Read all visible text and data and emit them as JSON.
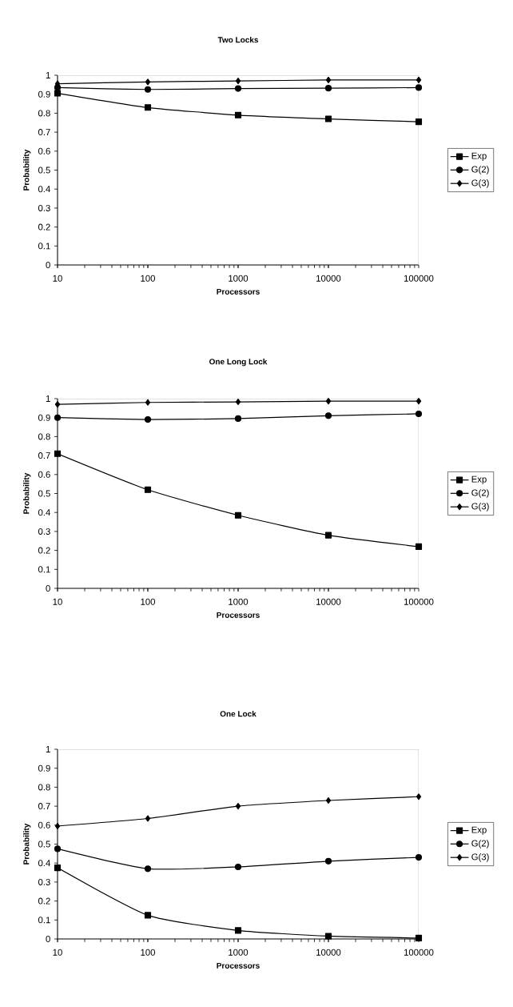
{
  "chart_data": [
    {
      "type": "line",
      "title": "Two Locks",
      "xlabel": "Processors",
      "ylabel": "Probability",
      "x": [
        10,
        100,
        1000,
        10000,
        100000
      ],
      "log": "x",
      "xlim": [
        10,
        100000
      ],
      "xticks": [
        10,
        100,
        1000,
        10000,
        100000
      ],
      "ylim": [
        0,
        1
      ],
      "yticks": [
        0,
        0.1,
        0.2,
        0.3,
        0.4,
        0.5,
        0.6,
        0.7,
        0.8,
        0.9,
        1
      ],
      "legend": "right",
      "line_style": "solid",
      "series": [
        {
          "name": "Exp",
          "color": "#000000",
          "marker": "square",
          "values": [
            0.905,
            0.83,
            0.79,
            0.77,
            0.755
          ]
        },
        {
          "name": "G(2)",
          "color": "#000000",
          "marker": "circle",
          "values": [
            0.935,
            0.925,
            0.93,
            0.932,
            0.935
          ]
        },
        {
          "name": "G(3)",
          "color": "#000000",
          "marker": "diamond",
          "values": [
            0.955,
            0.965,
            0.97,
            0.975,
            0.975
          ]
        }
      ]
    },
    {
      "type": "line",
      "title": "One Long Lock",
      "xlabel": "Processors",
      "ylabel": "Probability",
      "x": [
        10,
        100,
        1000,
        10000,
        100000
      ],
      "log": "x",
      "xlim": [
        10,
        100000
      ],
      "xticks": [
        10,
        100,
        1000,
        10000,
        100000
      ],
      "ylim": [
        0,
        1
      ],
      "yticks": [
        0,
        0.1,
        0.2,
        0.3,
        0.4,
        0.5,
        0.6,
        0.7,
        0.8,
        0.9,
        1
      ],
      "legend": "right",
      "line_style": "solid",
      "series": [
        {
          "name": "Exp",
          "color": "#000000",
          "marker": "square",
          "values": [
            0.71,
            0.52,
            0.385,
            0.28,
            0.22
          ]
        },
        {
          "name": "G(2)",
          "color": "#000000",
          "marker": "circle",
          "values": [
            0.9,
            0.89,
            0.895,
            0.91,
            0.92
          ]
        },
        {
          "name": "G(3)",
          "color": "#000000",
          "marker": "diamond",
          "values": [
            0.97,
            0.98,
            0.983,
            0.987,
            0.987
          ]
        }
      ]
    },
    {
      "type": "line",
      "title": "One Lock",
      "xlabel": "Processors",
      "ylabel": "Probability",
      "x": [
        10,
        100,
        1000,
        10000,
        100000
      ],
      "log": "x",
      "xlim": [
        10,
        100000
      ],
      "xticks": [
        10,
        100,
        1000,
        10000,
        100000
      ],
      "ylim": [
        0,
        1
      ],
      "yticks": [
        0,
        0.1,
        0.2,
        0.3,
        0.4,
        0.5,
        0.6,
        0.7,
        0.8,
        0.9,
        1
      ],
      "legend": "right",
      "line_style": "solid",
      "series": [
        {
          "name": "Exp",
          "color": "#000000",
          "marker": "square",
          "values": [
            0.375,
            0.125,
            0.045,
            0.015,
            0.005
          ]
        },
        {
          "name": "G(2)",
          "color": "#000000",
          "marker": "circle",
          "values": [
            0.475,
            0.37,
            0.38,
            0.41,
            0.43
          ]
        },
        {
          "name": "G(3)",
          "color": "#000000",
          "marker": "diamond",
          "values": [
            0.595,
            0.635,
            0.7,
            0.73,
            0.75
          ]
        }
      ]
    }
  ]
}
